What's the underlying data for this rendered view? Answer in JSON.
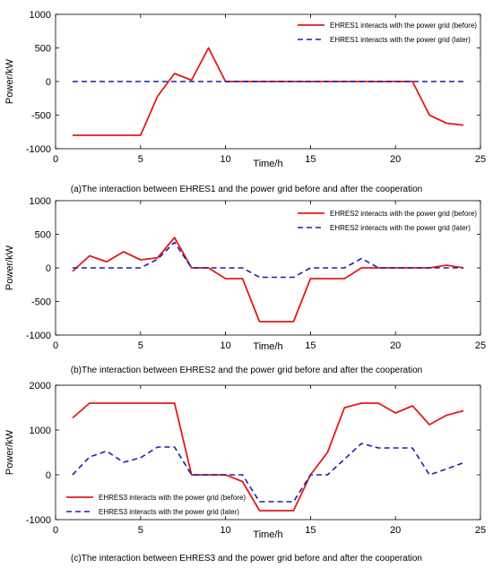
{
  "chart_data": [
    {
      "type": "line",
      "caption": "(a)The interaction between EHRES1 and the power grid before and after the cooperation",
      "xlabel": "Time/h",
      "ylabel": "Power/kW",
      "xlim": [
        0,
        25
      ],
      "ylim": [
        -1000,
        1000
      ],
      "xticks": [
        0,
        5,
        10,
        15,
        20,
        25
      ],
      "yticks": [
        -1000,
        -500,
        0,
        500,
        1000
      ],
      "legend_position": "top-right",
      "x": [
        1,
        2,
        3,
        4,
        5,
        6,
        7,
        8,
        9,
        10,
        11,
        12,
        13,
        14,
        15,
        16,
        17,
        18,
        19,
        20,
        21,
        22,
        23,
        24
      ],
      "series": [
        {
          "name": "EHRES1 interacts with the power grid (before)",
          "color": "#e31a1c",
          "style": "solid",
          "values": [
            -800,
            -800,
            -800,
            -800,
            -800,
            -220,
            120,
            20,
            500,
            0,
            0,
            0,
            0,
            0,
            0,
            0,
            0,
            0,
            0,
            0,
            0,
            -500,
            -620,
            -650
          ]
        },
        {
          "name": "EHRES1 interacts with the power grid (later)",
          "color": "#1f1fa8",
          "style": "dashed",
          "values": [
            0,
            0,
            0,
            0,
            0,
            0,
            0,
            0,
            0,
            0,
            0,
            0,
            0,
            0,
            0,
            0,
            0,
            0,
            0,
            0,
            0,
            0,
            0,
            0
          ]
        }
      ]
    },
    {
      "type": "line",
      "caption": "(b)The interaction between EHRES2 and the power grid before and after the cooperation",
      "xlabel": "Time/h",
      "ylabel": "Power/kW",
      "xlim": [
        0,
        25
      ],
      "ylim": [
        -1000,
        1000
      ],
      "xticks": [
        0,
        5,
        10,
        15,
        20,
        25
      ],
      "yticks": [
        -1000,
        -500,
        0,
        500,
        1000
      ],
      "legend_position": "top-right",
      "x": [
        1,
        2,
        3,
        4,
        5,
        6,
        7,
        8,
        9,
        10,
        11,
        12,
        13,
        14,
        15,
        16,
        17,
        18,
        19,
        20,
        21,
        22,
        23,
        24
      ],
      "series": [
        {
          "name": "EHRES2 interacts with the power grid (before)",
          "color": "#e31a1c",
          "style": "solid",
          "values": [
            -50,
            180,
            90,
            240,
            120,
            150,
            450,
            0,
            0,
            -160,
            -160,
            -800,
            -800,
            -800,
            -160,
            -160,
            -160,
            0,
            0,
            0,
            0,
            0,
            40,
            0
          ]
        },
        {
          "name": "EHRES2 interacts with the power grid (later)",
          "color": "#1f1fa8",
          "style": "dashed",
          "values": [
            0,
            0,
            0,
            0,
            0,
            130,
            380,
            0,
            0,
            0,
            0,
            -140,
            -140,
            -140,
            0,
            0,
            0,
            140,
            0,
            0,
            0,
            0,
            0,
            0
          ]
        }
      ]
    },
    {
      "type": "line",
      "caption": "(c)The interaction between EHRES3 and the power grid before and after the cooperation",
      "xlabel": "Time/h",
      "ylabel": "Power/kW",
      "xlim": [
        0,
        25
      ],
      "ylim": [
        -1000,
        2000
      ],
      "xticks": [
        0,
        5,
        10,
        15,
        20,
        25
      ],
      "yticks": [
        -1000,
        0,
        1000,
        2000
      ],
      "legend_position": "bottom-left",
      "x": [
        1,
        2,
        3,
        4,
        5,
        6,
        7,
        8,
        9,
        10,
        11,
        12,
        13,
        14,
        15,
        16,
        17,
        18,
        19,
        20,
        21,
        22,
        23,
        24
      ],
      "series": [
        {
          "name": "EHRES3 interacts with the power grid (before)",
          "color": "#e31a1c",
          "style": "solid",
          "values": [
            1270,
            1600,
            1600,
            1600,
            1600,
            1600,
            1600,
            0,
            0,
            0,
            -150,
            -800,
            -800,
            -800,
            0,
            500,
            1500,
            1600,
            1600,
            1380,
            1540,
            1120,
            1330,
            1430
          ]
        },
        {
          "name": "EHRES3 interacts with the power grid (later)",
          "color": "#1f1fa8",
          "style": "dashed",
          "values": [
            0,
            400,
            530,
            280,
            380,
            620,
            620,
            0,
            0,
            0,
            0,
            -600,
            -600,
            -600,
            0,
            0,
            350,
            700,
            600,
            600,
            600,
            0,
            130,
            270
          ]
        }
      ]
    }
  ]
}
